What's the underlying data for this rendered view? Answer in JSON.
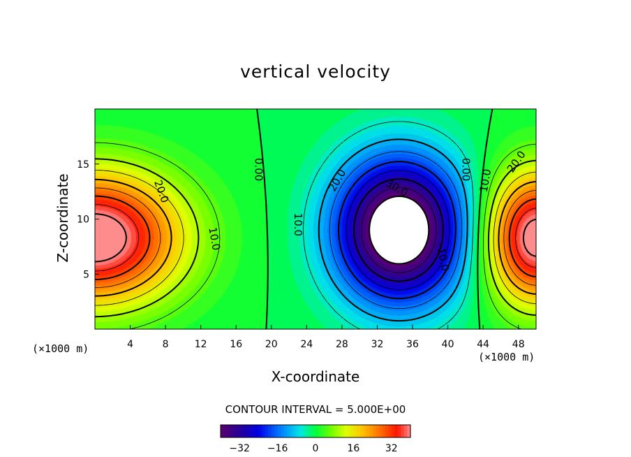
{
  "chart_data": {
    "type": "heatmap",
    "title": "vertical velocity",
    "xlabel": "X-coordinate",
    "ylabel": "Z-coordinate",
    "x_unit": "(×1000 m)",
    "x_unit_right": "(×1000 m)",
    "xlim": [
      0,
      50
    ],
    "ylim": [
      0,
      20
    ],
    "x_ticks": [
      4,
      8,
      12,
      16,
      20,
      24,
      28,
      32,
      36,
      40,
      44,
      48
    ],
    "y_ticks": [
      5,
      10,
      15
    ],
    "contour_interval_text": "CONTOUR INTERVAL = 5.000E+00",
    "contour_interval": 5,
    "colorbar": {
      "min": -40,
      "max": 40,
      "ticks": [
        -32,
        -16,
        0,
        16,
        32
      ],
      "tick_labels": [
        "−32",
        "−16",
        "0",
        "16",
        "32"
      ]
    },
    "field": {
      "description_of_cells": "updraft near x=0/50, downdraft core near x=35, z=8",
      "updraft_max": 40,
      "downdraft_min": -40
    },
    "contour_labels": [
      {
        "text": "20.0",
        "x": 7.5,
        "z": 12.5,
        "angle": 70
      },
      {
        "text": "10.0",
        "x": 13.5,
        "z": 8.2,
        "angle": 80
      },
      {
        "text": "0.00",
        "x": 18.5,
        "z": 14.5,
        "angle": 90
      },
      {
        "text": "20.0",
        "x": 27.5,
        "z": 13.5,
        "angle": -60
      },
      {
        "text": "30.0",
        "x": 34.2,
        "z": 12.8,
        "angle": 30
      },
      {
        "text": "10.0",
        "x": 23.0,
        "z": 9.5,
        "angle": 90
      },
      {
        "text": "0.00",
        "x": 42.0,
        "z": 14.5,
        "angle": 90
      },
      {
        "text": "10.0",
        "x": 44.3,
        "z": 13.5,
        "angle": -80
      },
      {
        "text": "-10.0",
        "x": 39.4,
        "z": 6.5,
        "angle": 80
      },
      {
        "text": "20.0",
        "x": 47.8,
        "z": 15.2,
        "angle": -55
      }
    ]
  }
}
